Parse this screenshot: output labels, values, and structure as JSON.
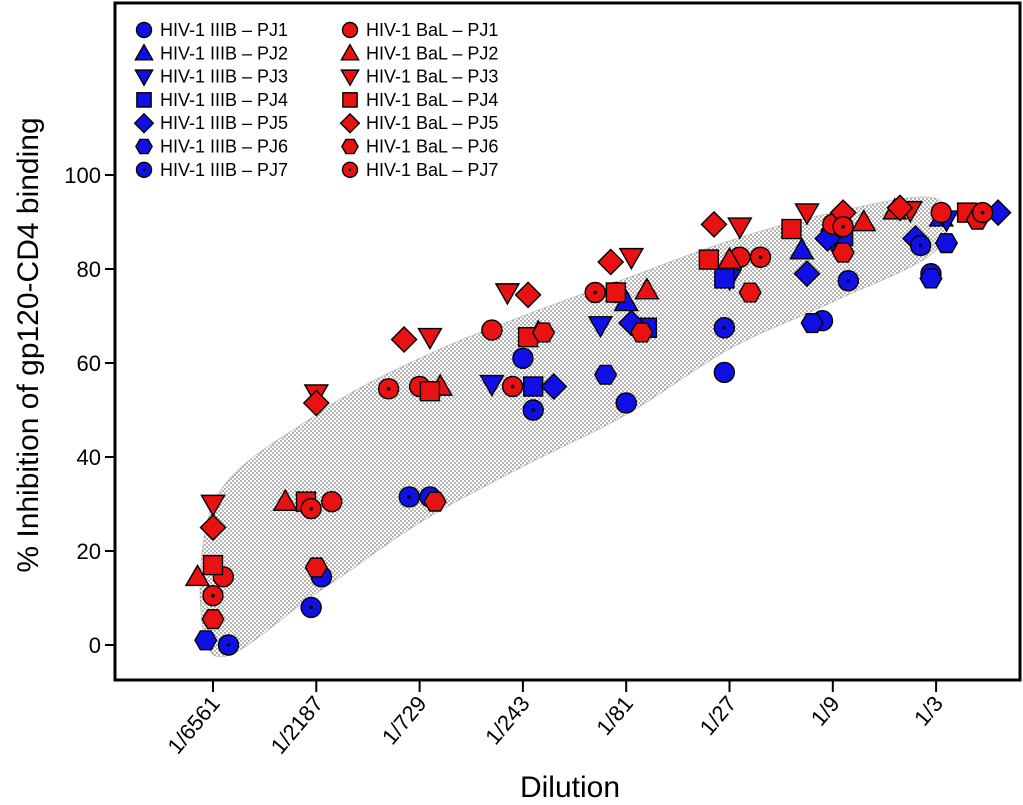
{
  "chart_data": {
    "type": "scatter",
    "title": "",
    "xlabel": "Dilution",
    "ylabel": "% Inhibition of gp120-CD4 binding",
    "categories": [
      "1/6561",
      "1/2187",
      "1/729",
      "1/243",
      "1/81",
      "1/27",
      "1/9",
      "1/3"
    ],
    "yticks": [
      0,
      20,
      40,
      60,
      80,
      100
    ],
    "ylim": [
      -8,
      138
    ],
    "grid": false,
    "legend_position": "top-left",
    "colors": {
      "IIIB": "#1010e6",
      "BaL": "#e81212",
      "envelope": "#cfcfcf",
      "axis": "#000000"
    },
    "envelope": {
      "description_shape": "stippled band",
      "upper": [
        [
          1,
          30
        ],
        [
          2,
          49
        ],
        [
          3,
          61
        ],
        [
          4,
          70
        ],
        [
          5,
          78
        ],
        [
          6,
          86
        ],
        [
          7,
          92
        ],
        [
          8,
          95
        ]
      ],
      "lower": [
        [
          8,
          84
        ],
        [
          7,
          73
        ],
        [
          6,
          63
        ],
        [
          5,
          49
        ],
        [
          4,
          38
        ],
        [
          3,
          26
        ],
        [
          2,
          11
        ],
        [
          1,
          -2
        ]
      ]
    },
    "series": [
      {
        "name": "HIV-1 IIIB – PJ1",
        "strain": "IIIB",
        "marker": "circle",
        "x": [
          2.05,
          3.1,
          4.0,
          5.0,
          5.95,
          6.9,
          7.95
        ],
        "y": [
          14.5,
          31.5,
          61,
          51.5,
          58,
          69,
          79
        ]
      },
      {
        "name": "HIV-1 IIIB – PJ2",
        "strain": "IIIB",
        "marker": "triangle-up",
        "x": [
          5.0,
          6.7,
          7.0,
          8.05
        ],
        "y": [
          73,
          84,
          90,
          91
        ]
      },
      {
        "name": "HIV-1 IIIB – PJ3",
        "strain": "IIIB",
        "marker": "triangle-down",
        "x": [
          3.7,
          4.75,
          6.0,
          7.0,
          8.1
        ],
        "y": [
          55.5,
          68,
          78,
          86,
          90.5
        ]
      },
      {
        "name": "HIV-1 IIIB – PJ4",
        "strain": "IIIB",
        "marker": "square",
        "x": [
          4.1,
          5.2,
          5.95,
          7.1
        ],
        "y": [
          55,
          67.5,
          78,
          87
        ]
      },
      {
        "name": "HIV-1 IIIB – PJ5",
        "strain": "IIIB",
        "marker": "diamond",
        "x": [
          4.3,
          5.05,
          6.75,
          6.95,
          7.8,
          8.6
        ],
        "y": [
          55,
          68.5,
          79,
          86.5,
          86.5,
          92
        ]
      },
      {
        "name": "HIV-1 IIIB – PJ6",
        "strain": "IIIB",
        "marker": "hexagon",
        "x": [
          0.93,
          4.8,
          6.8,
          7.95,
          8.1
        ],
        "y": [
          1,
          57.5,
          68.5,
          78,
          85.5
        ]
      },
      {
        "name": "HIV-1 IIIB – PJ7",
        "strain": "IIIB",
        "marker": "dot-circle",
        "x": [
          1.15,
          1.95,
          2.9,
          4.1,
          5.95,
          7.15,
          7.85
        ],
        "y": [
          0,
          8,
          31.5,
          50,
          67.5,
          77.5,
          85
        ]
      },
      {
        "name": "HIV-1 BaL – PJ1",
        "strain": "BaL",
        "marker": "circle",
        "x": [
          1.1,
          2.15,
          3.0,
          3.7,
          4.9,
          6.1,
          7.0,
          8.05
        ],
        "y": [
          14.5,
          30.5,
          55,
          67,
          75,
          82.5,
          89.5,
          92
        ]
      },
      {
        "name": "HIV-1 BaL – PJ2",
        "strain": "BaL",
        "marker": "triangle-up",
        "x": [
          0.85,
          1.7,
          3.2,
          4.15,
          5.2,
          6.0,
          7.3,
          7.6
        ],
        "y": [
          14.5,
          30.5,
          55,
          66.5,
          75.5,
          82,
          90,
          92.5
        ]
      },
      {
        "name": "HIV-1 BaL – PJ3",
        "strain": "BaL",
        "marker": "triangle-down",
        "x": [
          1.0,
          2.0,
          3.1,
          3.85,
          5.05,
          6.1,
          6.75,
          7.75
        ],
        "y": [
          30,
          53.5,
          65.5,
          75,
          82.5,
          89,
          92,
          92.5
        ]
      },
      {
        "name": "HIV-1 BaL – PJ4",
        "strain": "BaL",
        "marker": "square",
        "x": [
          1.0,
          1.9,
          3.1,
          4.05,
          4.9,
          5.8,
          6.6,
          8.3
        ],
        "y": [
          17,
          30.5,
          54,
          65.5,
          75,
          82,
          88.5,
          92
        ]
      },
      {
        "name": "HIV-1 BaL – PJ5",
        "strain": "BaL",
        "marker": "diamond",
        "x": [
          1.0,
          2.0,
          2.85,
          4.05,
          4.85,
          5.85,
          7.1,
          7.65
        ],
        "y": [
          25,
          51.5,
          65,
          74.5,
          81.5,
          89.5,
          92,
          93
        ]
      },
      {
        "name": "HIV-1 BaL – PJ6",
        "strain": "BaL",
        "marker": "hexagon",
        "x": [
          1.0,
          2.0,
          3.15,
          4.2,
          5.15,
          6.2,
          7.1,
          8.4
        ],
        "y": [
          5.5,
          16.5,
          30.5,
          66.5,
          66.5,
          75,
          83.5,
          90.5
        ]
      },
      {
        "name": "HIV-1 BaL – PJ7",
        "strain": "BaL",
        "marker": "dot-circle",
        "x": [
          1.0,
          1.95,
          2.7,
          3.9,
          4.7,
          6.3,
          7.1,
          8.45
        ],
        "y": [
          10.5,
          29,
          54.5,
          55,
          75,
          82.5,
          89,
          92
        ]
      }
    ]
  }
}
